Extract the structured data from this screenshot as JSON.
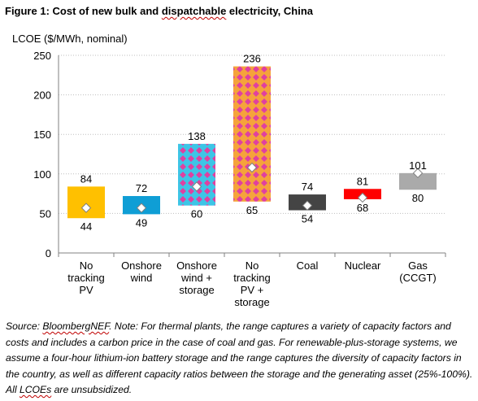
{
  "figure": {
    "title_prefix": "Figure 1:  Cost of new bulk and ",
    "title_squiggle": "dispatchable",
    "title_suffix": " electricity, China"
  },
  "chart_data": {
    "type": "bar",
    "subtype": "floating-range",
    "ylabel": "LCOE ($/MWh, nominal)",
    "ylim": [
      0,
      250
    ],
    "yticks": [
      0,
      50,
      100,
      150,
      200,
      250
    ],
    "grid": true,
    "categories": [
      [
        "No",
        "tracking",
        "PV"
      ],
      [
        "Onshore",
        "wind"
      ],
      [
        "Onshore",
        "wind +",
        "storage"
      ],
      [
        "No",
        "tracking",
        "PV +",
        "storage"
      ],
      [
        "Coal"
      ],
      [
        "Nuclear"
      ],
      [
        "Gas",
        "(CCGT)"
      ]
    ],
    "low": [
      44,
      49,
      60,
      65,
      54,
      68,
      80
    ],
    "high": [
      84,
      72,
      138,
      236,
      74,
      81,
      101
    ],
    "mid": [
      57,
      57,
      84,
      108,
      60,
      70,
      101
    ],
    "colors": [
      "#ffc000",
      "#0f9ed5",
      "#3dc5e6",
      "#f5a33b",
      "#444444",
      "#ff0000",
      "#aaaaaa"
    ],
    "patterns": [
      "",
      "",
      "#e040a0",
      "#e040a0",
      "",
      "",
      ""
    ]
  },
  "source": {
    "part1": "Source: ",
    "squig1": "BloombergNEF",
    "part2": ". Note: For thermal plants, the range captures a variety of capacity factors and costs and includes a carbon price in the case of coal and gas. For renewable-plus-storage systems, we assume a four-hour lithium-ion battery storage and the range captures the diversity of capacity factors in the country, as well as different capacity ratios between the storage and the generating asset (25%-100%). All ",
    "squig2": "LCOEs",
    "part3": " are unsubsidized."
  }
}
